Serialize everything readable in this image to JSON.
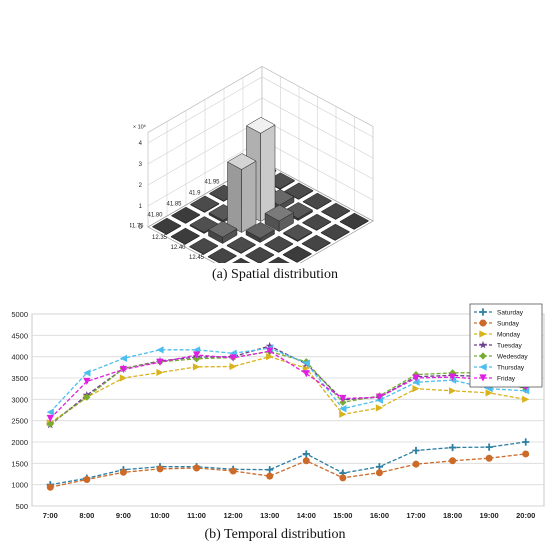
{
  "captions": {
    "a": "(a) Spatial distribution",
    "b": "(b) Temporal distribution"
  },
  "spatial_chart": {
    "type": "bar3d",
    "z_exponent_label": "× 10⁶",
    "z_ticks": [
      "0",
      "1",
      "2",
      "3",
      "4"
    ],
    "lat_ticks": [
      "42",
      "41.95",
      "41.9",
      "41.85",
      "41.80",
      "41.75"
    ],
    "lon_ticks": [
      "12.35",
      "12.40",
      "12.45",
      "12.50",
      "12.55",
      "12.60",
      "12.65"
    ],
    "cells": [
      [
        0.05,
        0.04,
        0.03,
        0.03,
        0.0,
        0.0
      ],
      [
        0.04,
        0.1,
        0.35,
        0.1,
        0.05,
        0.0
      ],
      [
        0.03,
        0.25,
        4.2,
        3.0,
        0.3,
        0.02
      ],
      [
        0.02,
        0.1,
        0.5,
        0.2,
        0.03,
        0.01
      ],
      [
        0.01,
        0.02,
        0.05,
        0.02,
        0.01,
        0.0
      ],
      [
        0.0,
        0.01,
        0.01,
        0.0,
        0.0,
        0.0
      ]
    ]
  },
  "chart_data": {
    "type": "line",
    "categories": [
      "7:00",
      "8:00",
      "9:00",
      "10:00",
      "11:00",
      "12:00",
      "13:00",
      "14:00",
      "15:00",
      "16:00",
      "17:00",
      "18:00",
      "19:00",
      "20:00"
    ],
    "ylim": [
      500,
      5000
    ],
    "yticks": [
      500,
      1000,
      1500,
      2000,
      2500,
      3000,
      3500,
      4000,
      4500,
      5000
    ],
    "legend_position": "top-right",
    "series": [
      {
        "name": "Saturday",
        "color": "#2c7fa3",
        "marker": "plus",
        "values": [
          1000,
          1150,
          1350,
          1420,
          1420,
          1360,
          1350,
          1720,
          1270,
          1420,
          1800,
          1870,
          1880,
          2000
        ]
      },
      {
        "name": "Sunday",
        "color": "#cc6a2a",
        "marker": "circle",
        "values": [
          940,
          1120,
          1290,
          1370,
          1390,
          1320,
          1200,
          1560,
          1160,
          1280,
          1480,
          1560,
          1620,
          1720
        ]
      },
      {
        "name": "Monday",
        "color": "#d9b21c",
        "marker": "triangle-right",
        "values": [
          2450,
          3050,
          3500,
          3630,
          3760,
          3770,
          4000,
          3730,
          2650,
          2800,
          3250,
          3200,
          3150,
          3000
        ]
      },
      {
        "name": "Tuesday",
        "color": "#6b3d8f",
        "marker": "star",
        "values": [
          2400,
          3100,
          3720,
          3900,
          3990,
          4000,
          4250,
          3830,
          2990,
          3050,
          3530,
          3560,
          3530,
          3250
        ]
      },
      {
        "name": "Wedesday",
        "color": "#77ac30",
        "marker": "diamond",
        "values": [
          2420,
          3050,
          3720,
          3880,
          3950,
          3980,
          4120,
          3880,
          2930,
          3080,
          3580,
          3620,
          3630,
          3220
        ]
      },
      {
        "name": "Thursday",
        "color": "#4dbeee",
        "marker": "triangle-left",
        "values": [
          2700,
          3620,
          3960,
          4160,
          4160,
          4080,
          4200,
          3850,
          2780,
          2980,
          3400,
          3450,
          3250,
          3200
        ]
      },
      {
        "name": "Friday",
        "color": "#e020e0",
        "marker": "triangle-down",
        "values": [
          2550,
          3420,
          3700,
          3870,
          4040,
          3970,
          4130,
          3600,
          3020,
          3050,
          3500,
          3520,
          3460,
          3280
        ]
      }
    ]
  }
}
